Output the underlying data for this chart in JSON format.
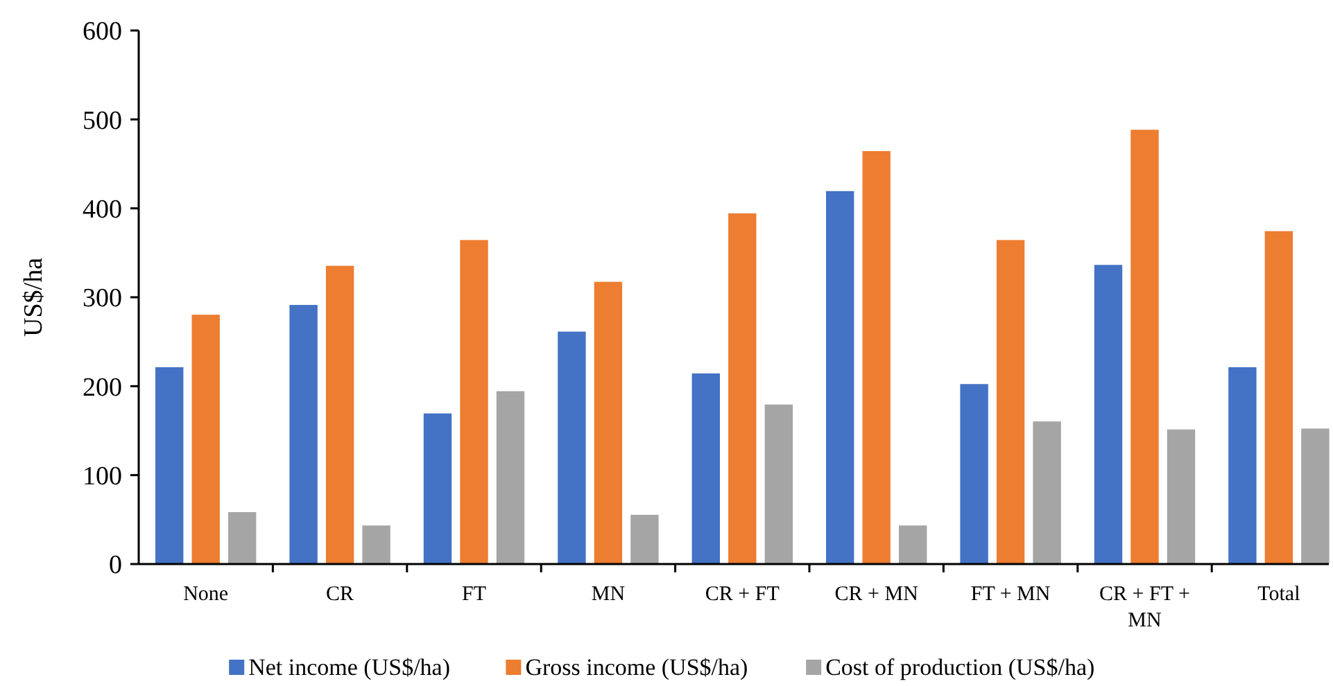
{
  "chart_data": {
    "type": "bar",
    "ylabel": "US$/ha",
    "categories": [
      "None",
      "CR",
      "FT",
      "MN",
      "CR + FT",
      "CR + MN",
      "FT + MN",
      "CR + FT + MN",
      "Total"
    ],
    "series": [
      {
        "name": "Net income (US$/ha)",
        "color": "#4472c4",
        "values": [
          222,
          292,
          170,
          262,
          215,
          420,
          203,
          337,
          222
        ]
      },
      {
        "name": "Gross income (US$/ha)",
        "color": "#ed7d31",
        "values": [
          281,
          336,
          365,
          318,
          395,
          465,
          365,
          489,
          375
        ]
      },
      {
        "name": "Cost of production (US$/ha)",
        "color": "#a5a5a5",
        "values": [
          59,
          44,
          195,
          56,
          180,
          44,
          161,
          152,
          153
        ]
      }
    ],
    "ylim": [
      0,
      600
    ],
    "yticks": [
      0,
      100,
      200,
      300,
      400,
      500,
      600
    ],
    "grid": false,
    "legend": "bottom"
  }
}
